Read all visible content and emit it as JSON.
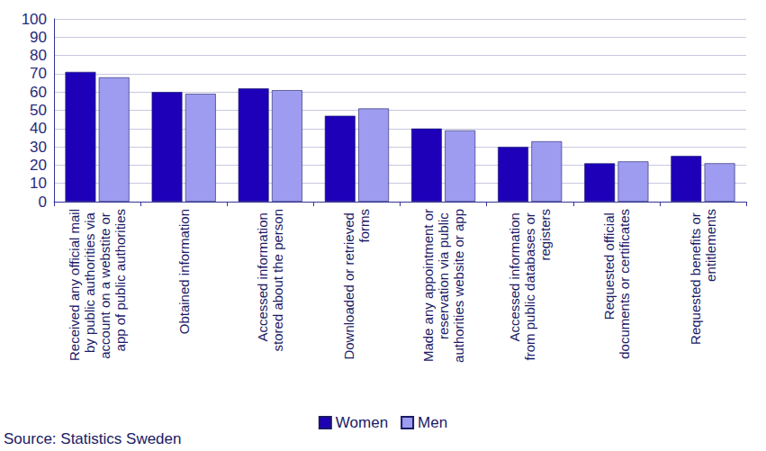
{
  "chart_data": {
    "type": "bar",
    "categories": [
      "Received any official mail by public authorities via account on a webstite or app of public authorities",
      "Obtained information",
      "Accessed information stored about the person",
      "Downloaded or retrieved forms",
      "Made any appointment or reservation via public authorities website or app",
      "Accessed information from public databases or registers",
      "Requested official documents or certificates",
      "Requested benefits or entitlements"
    ],
    "series": [
      {
        "name": "Women",
        "color": "#1d00b8",
        "values": [
          71,
          60,
          62,
          47,
          40,
          30,
          21,
          25
        ]
      },
      {
        "name": "Men",
        "color": "#9d9cf0",
        "values": [
          68,
          59,
          61,
          51,
          39,
          33,
          22,
          21
        ]
      }
    ],
    "ylim": [
      0,
      100
    ],
    "yticks": [
      0,
      10,
      20,
      30,
      40,
      50,
      60,
      70,
      80,
      90,
      100
    ],
    "grid": true,
    "legend": "bottom",
    "source": "Source: Statistics Sweden"
  }
}
